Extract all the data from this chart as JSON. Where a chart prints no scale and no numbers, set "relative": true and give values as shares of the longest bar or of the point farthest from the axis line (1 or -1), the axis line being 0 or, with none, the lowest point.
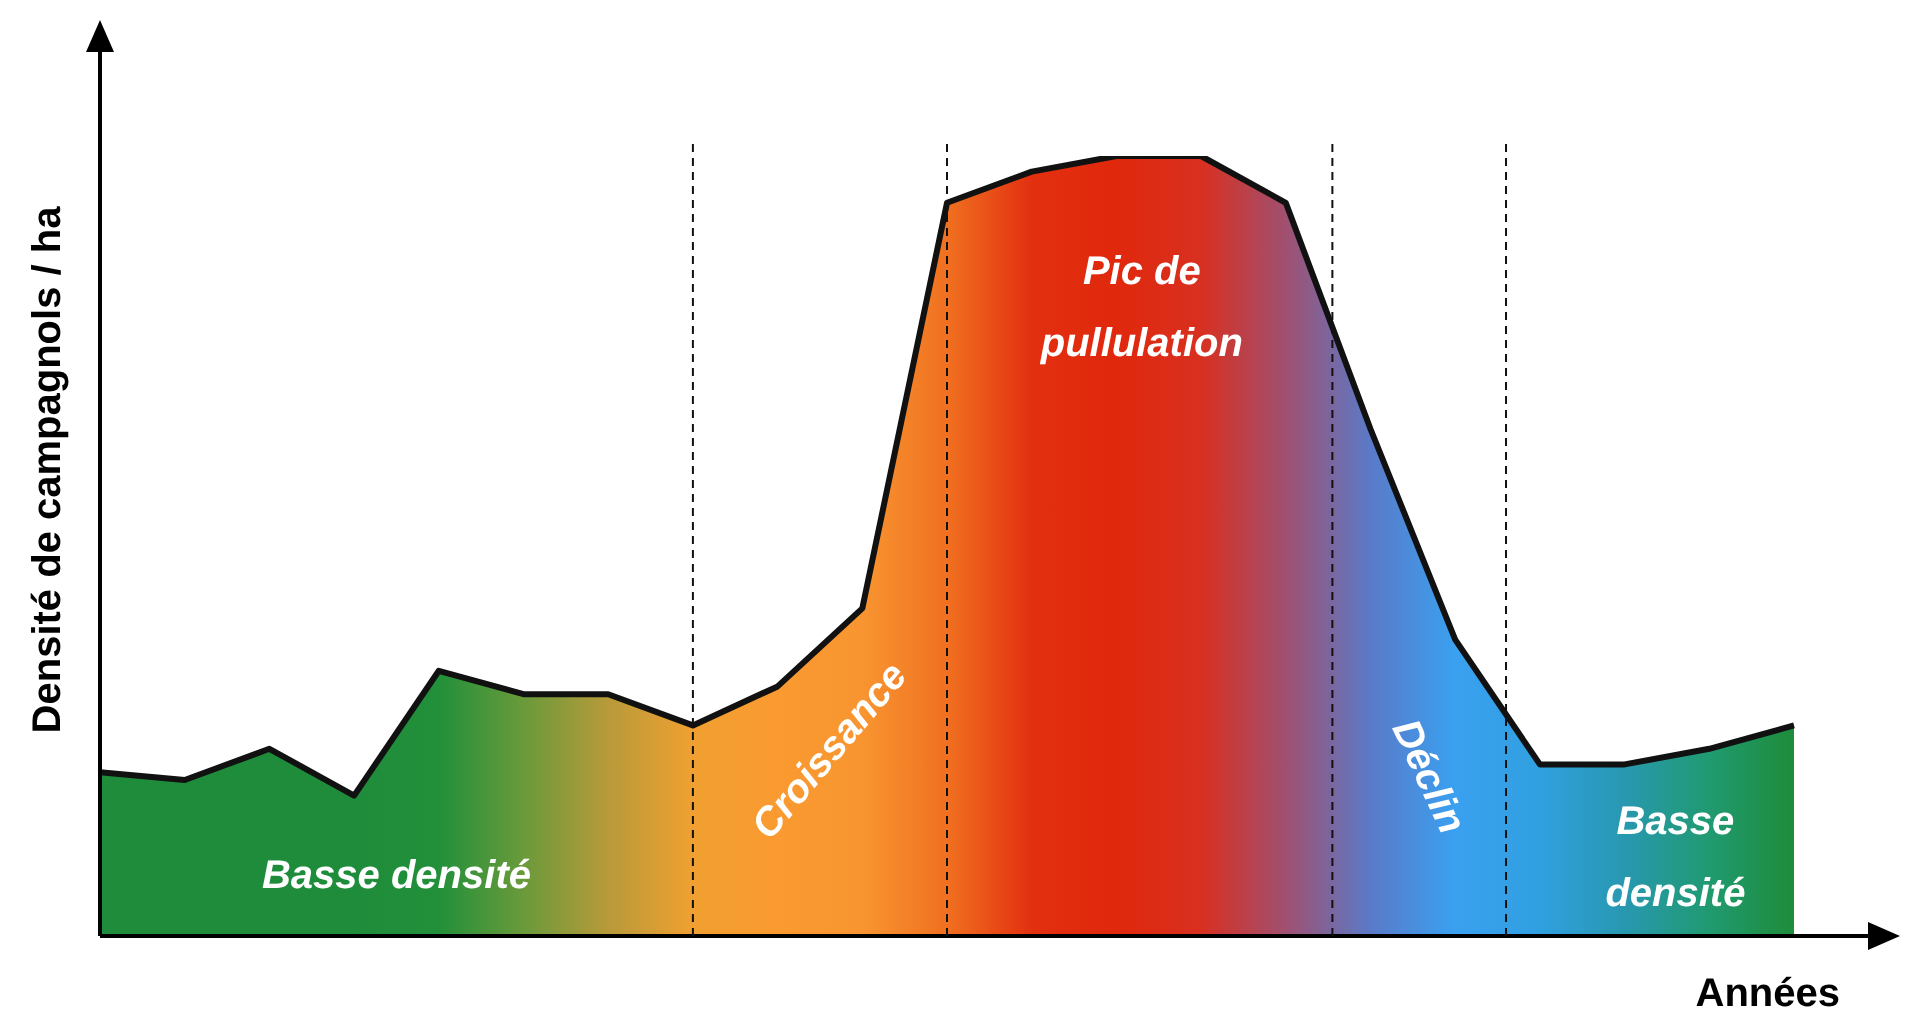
{
  "chart_data": {
    "type": "area",
    "relative": true,
    "xlabel": "Années",
    "ylabel": "Densité de campagnols / ha",
    "categories": [
      null,
      null,
      null,
      null,
      null,
      null,
      null,
      null,
      null,
      null,
      null,
      null,
      null,
      null,
      null,
      null,
      null,
      null,
      null,
      null,
      null
    ],
    "series": [
      {
        "color": "#111111",
        "values": [
          0.21,
          0.2,
          0.24,
          0.18,
          0.34,
          0.31,
          0.31,
          0.27,
          0.32,
          0.42,
          0.94,
          0.98,
          1,
          1,
          0.94,
          0.65,
          0.38,
          0.22,
          0.22,
          0.24,
          0.27
        ],
        "colors": [
          "#1e8c3a",
          "#1e8c3a",
          "#1e8c3a",
          "#1e8c3a",
          "#22903a",
          "#6a9a3a",
          "#b89a3a",
          "#f0a030",
          "#fa9a30",
          "#f89530",
          "#f07020",
          "#e23010",
          "#e0280c",
          "#d83020",
          "#a05070",
          "#5a7ac8",
          "#3aa0f0",
          "#30a0e0",
          "#2898b0",
          "#209a70",
          "#1e8c3a"
        ]
      }
    ],
    "annotations": [
      "Basse densité",
      "Croissance",
      "Pic de pullulation",
      "Déclin",
      "Basse densité"
    ],
    "line_style": "solid",
    "marker": "none"
  }
}
